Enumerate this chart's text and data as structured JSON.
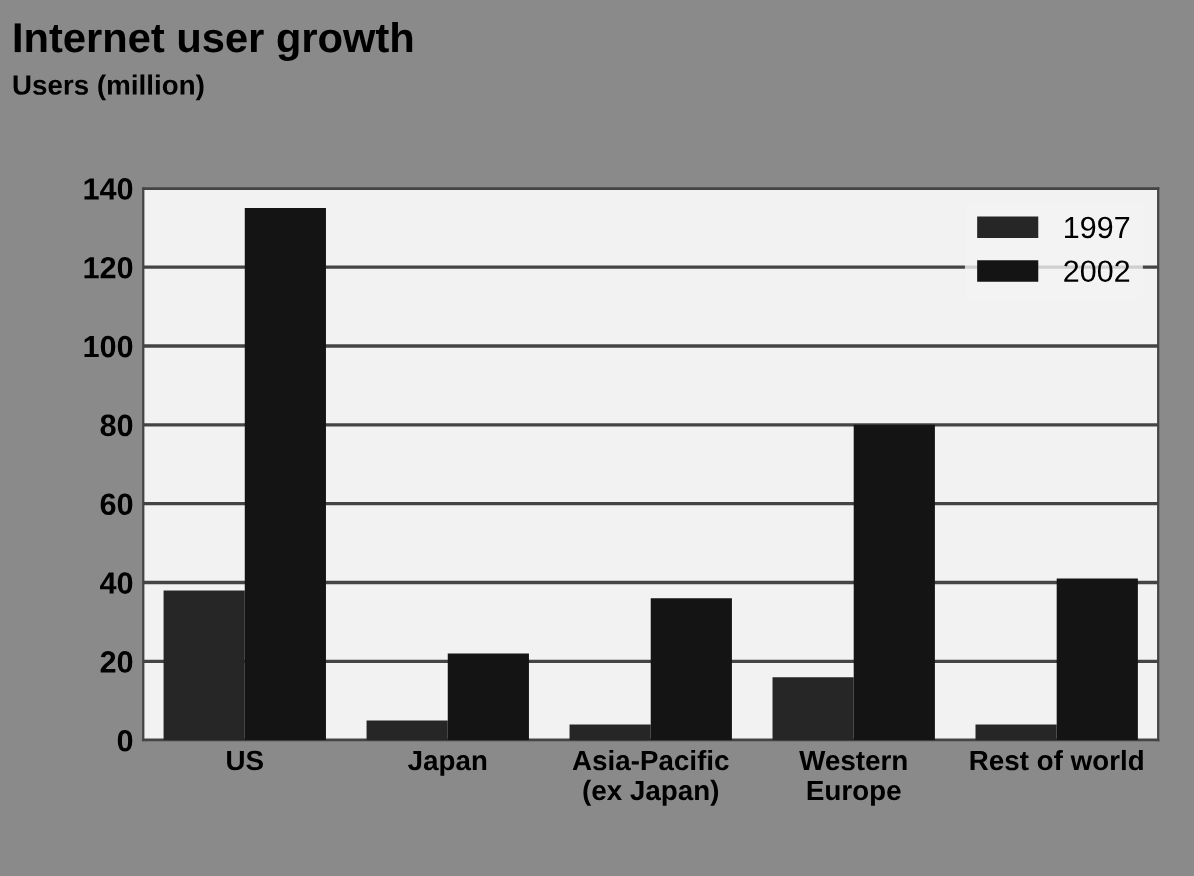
{
  "chart_data": {
    "type": "bar",
    "title": "Internet user growth",
    "ylabel": "Users (million)",
    "categories": [
      "US",
      "Japan",
      "Asia-Pacific\n(ex Japan)",
      "Western\nEurope",
      "Rest of world"
    ],
    "series": [
      {
        "name": "1997",
        "color": "#262626",
        "values": [
          38,
          5,
          4,
          16,
          4
        ]
      },
      {
        "name": "2002",
        "color": "#141414",
        "values": [
          135,
          22,
          36,
          80,
          41
        ]
      }
    ],
    "ylim": [
      0,
      140
    ],
    "yticks": [
      0,
      20,
      40,
      60,
      80,
      100,
      120,
      140
    ],
    "grid": "y",
    "legend": "top right"
  }
}
